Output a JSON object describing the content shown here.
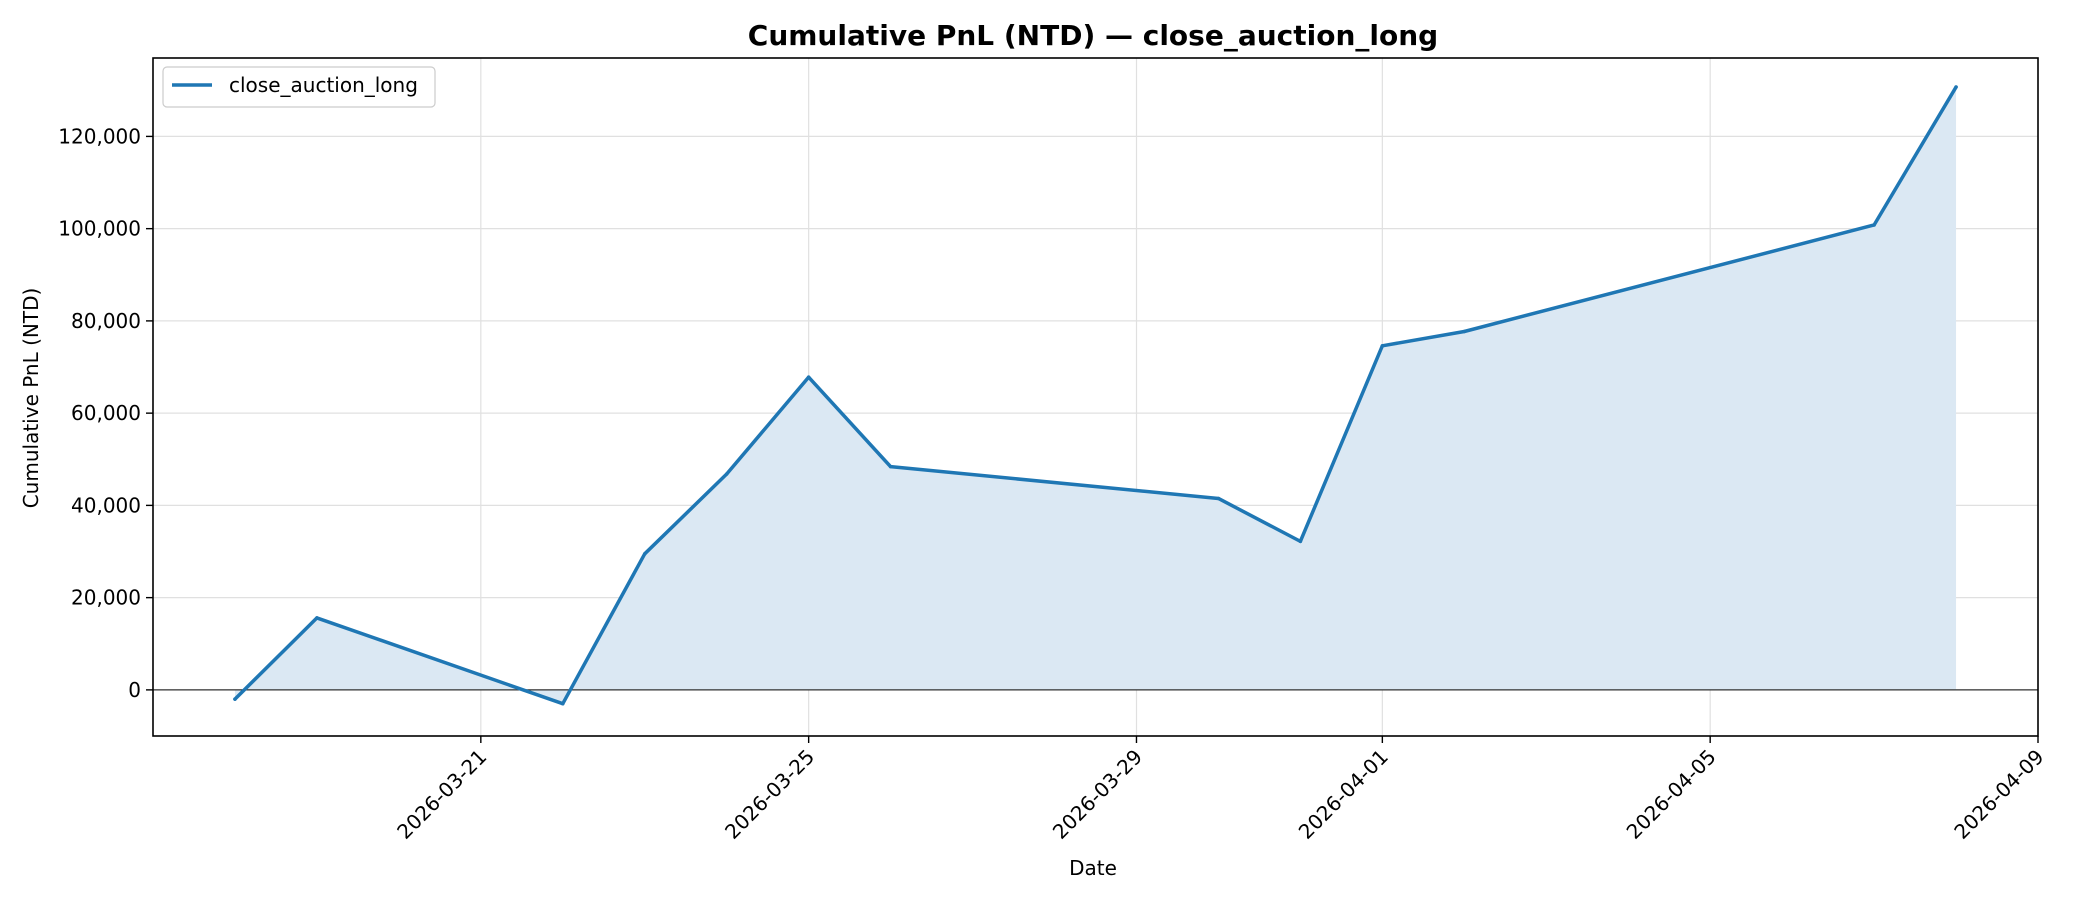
{
  "chart_data": {
    "type": "area",
    "title": "Cumulative PnL (NTD) — close_auction_long",
    "xlabel": "Date",
    "ylabel": "Cumulative PnL (NTD)",
    "x": [
      "2026-03-18",
      "2026-03-19",
      "2026-03-22",
      "2026-03-23",
      "2026-03-24",
      "2026-03-25",
      "2026-03-26",
      "2026-03-30",
      "2026-03-31",
      "2026-04-01",
      "2026-04-02",
      "2026-04-07",
      "2026-04-08"
    ],
    "series": [
      {
        "name": "close_auction_long",
        "values": [
          -2000,
          15600,
          -3000,
          29500,
          46800,
          67800,
          48400,
          41500,
          32200,
          74600,
          77700,
          100800,
          130700
        ],
        "color": "#1f77b4",
        "fill_color": "#dbe8f3"
      }
    ],
    "xlim": [
      "2026-03-17",
      "2026-04-09"
    ],
    "ylim": [
      -10000,
      137000
    ],
    "x_ticks": [
      "2026-03-21",
      "2026-03-25",
      "2026-03-29",
      "2026-04-01",
      "2026-04-05",
      "2026-04-09"
    ],
    "y_ticks": [
      0,
      20000,
      40000,
      60000,
      80000,
      100000,
      120000
    ],
    "y_tick_labels": [
      "0",
      "20,000",
      "40,000",
      "60,000",
      "80,000",
      "100,000",
      "120,000"
    ],
    "grid": true,
    "zero_line": true,
    "legend_position": "top-left"
  }
}
